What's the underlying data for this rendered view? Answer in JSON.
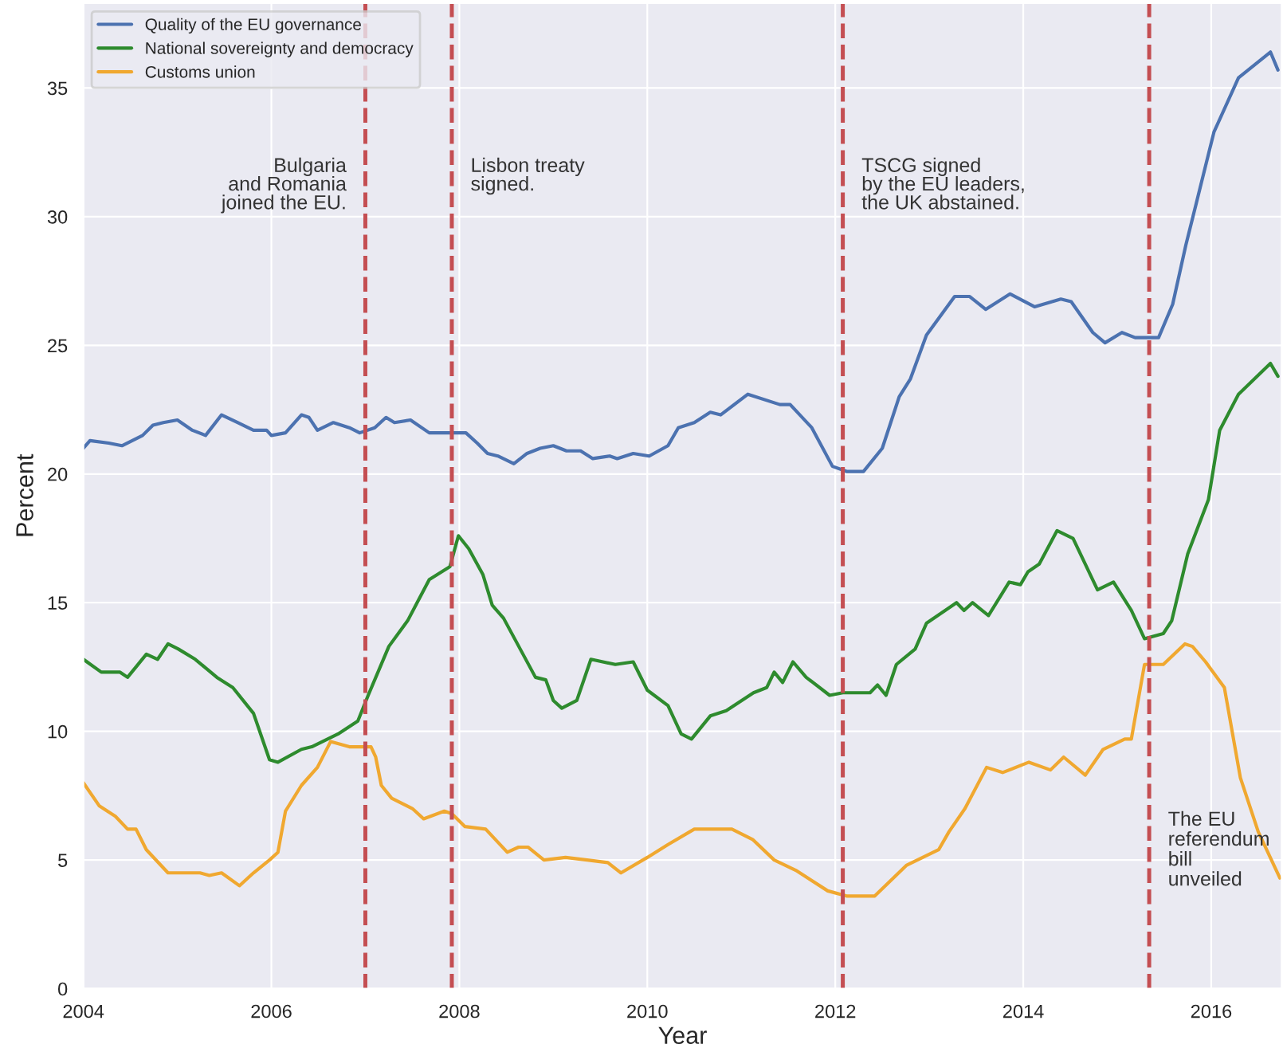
{
  "chart_data": {
    "type": "line",
    "xlabel": "Year",
    "ylabel": "Percent",
    "xlim": [
      2004,
      2016.75
    ],
    "ylim": [
      0,
      38.3
    ],
    "xticks": [
      2004,
      2006,
      2008,
      2010,
      2012,
      2014,
      2016
    ],
    "yticks": [
      0,
      5,
      10,
      15,
      20,
      25,
      30,
      35
    ],
    "grid": true,
    "legend": "top left",
    "marker": "none",
    "line_style": "solid",
    "series": [
      {
        "name": "Quality of the EU governance",
        "color": "#4c72b0",
        "x": [
          2004.0,
          2004.07,
          2004.27,
          2004.41,
          2004.63,
          2004.74,
          2004.85,
          2005.0,
          2005.16,
          2005.3,
          2005.47,
          2005.64,
          2005.81,
          2005.95,
          2006.0,
          2006.15,
          2006.32,
          2006.4,
          2006.49,
          2006.66,
          2006.83,
          2006.94,
          2007.1,
          2007.22,
          2007.31,
          2007.48,
          2007.68,
          2007.9,
          2008.07,
          2008.19,
          2008.3,
          2008.41,
          2008.58,
          2008.72,
          2008.86,
          2009.0,
          2009.14,
          2009.29,
          2009.42,
          2009.6,
          2009.68,
          2009.85,
          2010.02,
          2010.22,
          2010.33,
          2010.5,
          2010.67,
          2010.78,
          2011.07,
          2011.41,
          2011.52,
          2011.75,
          2011.97,
          2012.12,
          2012.3,
          2012.5,
          2012.68,
          2012.8,
          2012.97,
          2013.27,
          2013.43,
          2013.6,
          2013.86,
          2014.12,
          2014.4,
          2014.51,
          2014.74,
          2014.87,
          2015.05,
          2015.19,
          2015.44,
          2015.59,
          2015.73,
          2015.86,
          2016.03,
          2016.29,
          2016.63,
          2016.71
        ],
        "values": [
          21.0,
          21.3,
          21.2,
          21.1,
          21.5,
          21.9,
          22.0,
          22.1,
          21.7,
          21.5,
          22.3,
          22.0,
          21.7,
          21.7,
          21.5,
          21.6,
          22.3,
          22.2,
          21.7,
          22.0,
          21.8,
          21.6,
          21.8,
          22.2,
          22.0,
          22.1,
          21.6,
          21.6,
          21.6,
          21.2,
          20.8,
          20.7,
          20.4,
          20.8,
          21.0,
          21.1,
          20.9,
          20.9,
          20.6,
          20.7,
          20.6,
          20.8,
          20.7,
          21.1,
          21.8,
          22.0,
          22.4,
          22.3,
          23.1,
          22.7,
          22.7,
          21.8,
          20.3,
          20.1,
          20.1,
          21.0,
          23.0,
          23.7,
          25.4,
          26.9,
          26.9,
          26.4,
          27.0,
          26.5,
          26.8,
          26.7,
          25.5,
          25.1,
          25.5,
          25.3,
          25.3,
          26.6,
          28.9,
          30.8,
          33.3,
          35.4,
          36.4,
          35.7
        ]
      },
      {
        "name": "National sovereignty and democracy",
        "color": "#2e8b2e",
        "x": [
          2004.0,
          2004.19,
          2004.39,
          2004.47,
          2004.67,
          2004.79,
          2004.9,
          2005.01,
          2005.19,
          2005.42,
          2005.59,
          2005.81,
          2005.98,
          2006.07,
          2006.32,
          2006.43,
          2006.71,
          2006.92,
          2007.03,
          2007.25,
          2007.45,
          2007.68,
          2007.9,
          2007.99,
          2008.1,
          2008.25,
          2008.35,
          2008.47,
          2008.81,
          2008.92,
          2009.0,
          2009.09,
          2009.25,
          2009.4,
          2009.66,
          2009.85,
          2010.0,
          2010.22,
          2010.36,
          2010.47,
          2010.67,
          2010.84,
          2011.13,
          2011.27,
          2011.35,
          2011.44,
          2011.55,
          2011.69,
          2011.94,
          2012.08,
          2012.37,
          2012.45,
          2012.54,
          2012.65,
          2012.85,
          2012.97,
          2013.29,
          2013.37,
          2013.46,
          2013.63,
          2013.85,
          2013.97,
          2014.05,
          2014.17,
          2014.36,
          2014.53,
          2014.79,
          2014.96,
          2015.15,
          2015.29,
          2015.49,
          2015.58,
          2015.75,
          2015.97,
          2016.09,
          2016.29,
          2016.63,
          2016.71
        ],
        "values": [
          12.8,
          12.3,
          12.3,
          12.1,
          13.0,
          12.8,
          13.4,
          13.2,
          12.8,
          12.1,
          11.7,
          10.7,
          8.9,
          8.8,
          9.3,
          9.4,
          9.9,
          10.4,
          11.4,
          13.3,
          14.3,
          15.9,
          16.4,
          17.6,
          17.1,
          16.1,
          14.9,
          14.4,
          12.1,
          12.0,
          11.2,
          10.9,
          11.2,
          12.8,
          12.6,
          12.7,
          11.6,
          11.0,
          9.9,
          9.7,
          10.6,
          10.8,
          11.5,
          11.7,
          12.3,
          11.9,
          12.7,
          12.1,
          11.4,
          11.5,
          11.5,
          11.8,
          11.4,
          12.6,
          13.2,
          14.2,
          15.0,
          14.7,
          15.0,
          14.5,
          15.8,
          15.7,
          16.2,
          16.5,
          17.8,
          17.5,
          15.5,
          15.8,
          14.7,
          13.6,
          13.8,
          14.3,
          16.9,
          19.0,
          21.7,
          23.1,
          24.3,
          23.8
        ]
      },
      {
        "name": "Customs union",
        "color": "#f0a830",
        "x": [
          2004.0,
          2004.17,
          2004.34,
          2004.47,
          2004.56,
          2004.67,
          2004.9,
          2005.24,
          2005.34,
          2005.47,
          2005.66,
          2005.81,
          2005.98,
          2006.07,
          2006.15,
          2006.32,
          2006.49,
          2006.63,
          2006.83,
          2007.06,
          2007.11,
          2007.17,
          2007.28,
          2007.5,
          2007.62,
          2007.84,
          2007.92,
          2008.06,
          2008.28,
          2008.51,
          2008.63,
          2008.73,
          2008.9,
          2009.13,
          2009.36,
          2009.58,
          2009.72,
          2010.0,
          2010.22,
          2010.5,
          2010.73,
          2010.9,
          2011.12,
          2011.35,
          2011.58,
          2011.92,
          2012.12,
          2012.42,
          2012.76,
          2013.1,
          2013.21,
          2013.38,
          2013.61,
          2013.78,
          2014.06,
          2014.29,
          2014.43,
          2014.66,
          2014.85,
          2015.08,
          2015.15,
          2015.29,
          2015.49,
          2015.72,
          2015.8,
          2015.94,
          2016.14,
          2016.31,
          2016.5,
          2016.73
        ],
        "values": [
          8.0,
          7.1,
          6.7,
          6.2,
          6.2,
          5.4,
          4.5,
          4.5,
          4.4,
          4.5,
          4.0,
          4.5,
          5.0,
          5.3,
          6.9,
          7.9,
          8.6,
          9.6,
          9.4,
          9.4,
          9.0,
          7.9,
          7.4,
          7.0,
          6.6,
          6.9,
          6.8,
          6.3,
          6.2,
          5.3,
          5.5,
          5.5,
          5.0,
          5.1,
          5.0,
          4.9,
          4.5,
          5.1,
          5.6,
          6.2,
          6.2,
          6.2,
          5.8,
          5.0,
          4.6,
          3.8,
          3.6,
          3.6,
          4.8,
          5.4,
          6.1,
          7.0,
          8.6,
          8.4,
          8.8,
          8.5,
          9.0,
          8.3,
          9.3,
          9.7,
          9.7,
          12.6,
          12.6,
          13.4,
          13.3,
          12.7,
          11.7,
          8.2,
          6.1,
          4.3
        ]
      }
    ],
    "ref_lines": [
      {
        "axis": "x",
        "value": 2007.0,
        "color": "#c44e52",
        "line_style": "dashed",
        "label": "Bulgaria\nand Romania\njoined the EU."
      },
      {
        "axis": "x",
        "value": 2007.92,
        "color": "#c44e52",
        "line_style": "dashed",
        "label": "Lisbon treaty\nsigned."
      },
      {
        "axis": "x",
        "value": 2012.08,
        "color": "#c44e52",
        "line_style": "dashed",
        "label": "TSCG signed\nby the EU leaders,\nthe UK abstained."
      },
      {
        "axis": "x",
        "value": 2015.34,
        "color": "#c44e52",
        "line_style": "dashed",
        "label": "The EU\nreferendum\nbill\nunveiled"
      }
    ]
  }
}
